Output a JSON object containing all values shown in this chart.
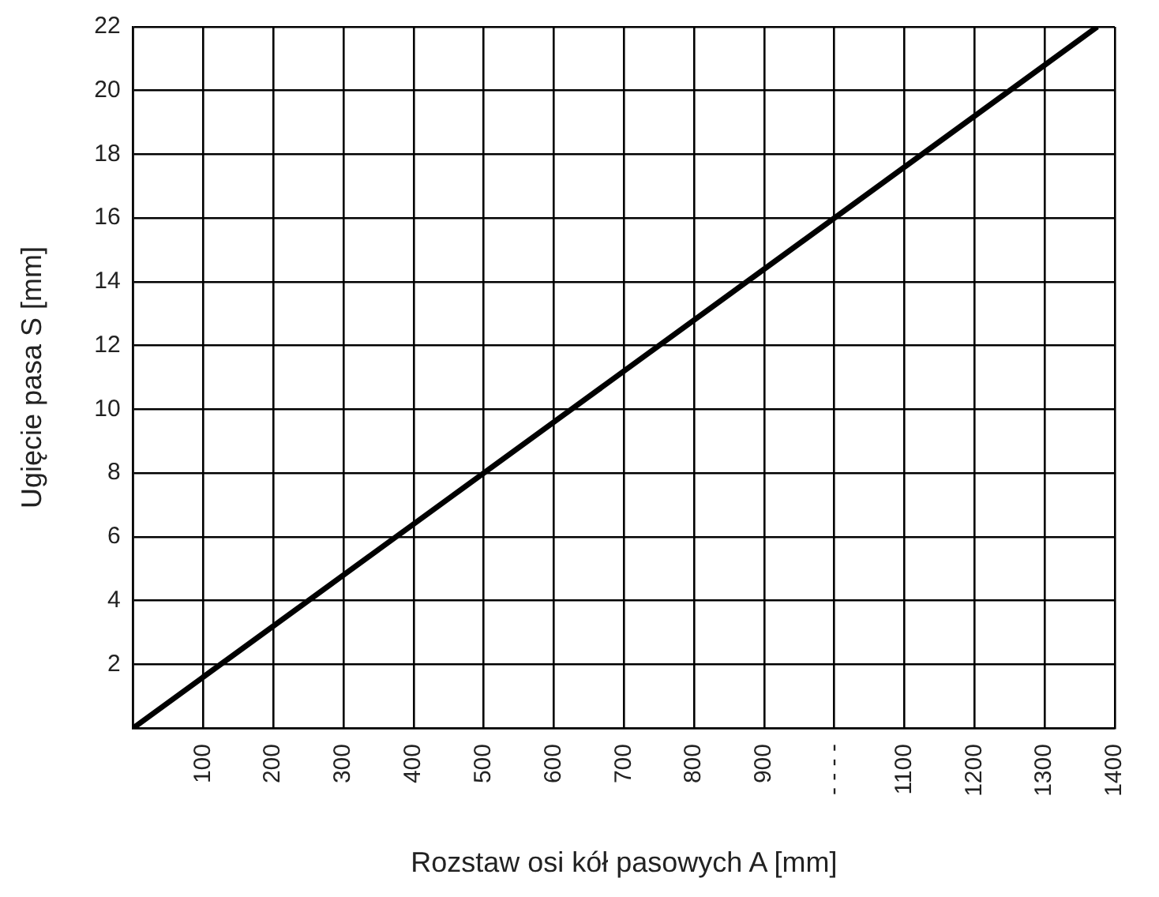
{
  "chart_data": {
    "type": "line",
    "xlabel": "Rozstaw osi kół pasowych A [mm]",
    "ylabel": "Ugięcie pasa S [mm]",
    "x": [
      0,
      1375
    ],
    "series": [
      {
        "color": "#000000",
        "values": [
          0,
          22
        ]
      }
    ],
    "xlim": [
      0,
      1400
    ],
    "xticks": [
      {
        "value": 0,
        "label": null
      },
      100,
      200,
      300,
      400,
      500,
      600,
      700,
      800,
      900,
      {
        "value": 1000,
        "label": "- - - -"
      },
      1100,
      1200,
      1300,
      1400
    ],
    "ylim": [
      0,
      22
    ],
    "yticks": [
      {
        "value": 0,
        "label": null
      },
      2,
      4,
      6,
      8,
      10,
      12,
      14,
      16,
      18,
      20,
      22
    ],
    "grid": true,
    "legend": false,
    "marker": "none",
    "line_style": "solid"
  }
}
